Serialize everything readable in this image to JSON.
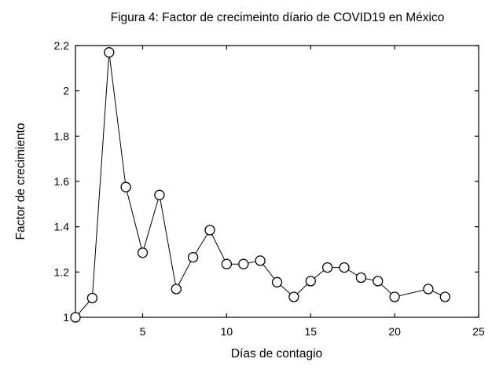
{
  "chart_data": {
    "type": "line",
    "title": "Figura 4: Factor de crecimeinto díario de COVID19 en México",
    "xlabel": "Días de contagio",
    "ylabel": "Factor de crecimiento",
    "x": [
      1,
      2,
      3,
      4,
      5,
      6,
      7,
      8,
      9,
      10,
      11,
      12,
      13,
      14,
      15,
      16,
      17,
      18,
      19,
      20,
      22,
      23
    ],
    "y": [
      1.0,
      1.085,
      2.17,
      1.575,
      1.285,
      1.54,
      1.125,
      1.265,
      1.385,
      1.235,
      1.235,
      1.25,
      1.155,
      1.09,
      1.16,
      1.22,
      1.22,
      1.175,
      1.16,
      1.09,
      1.125,
      1.09
    ],
    "xlim": [
      1,
      25
    ],
    "ylim": [
      1,
      2.2
    ],
    "xticks": [
      5,
      10,
      15,
      20,
      25
    ],
    "yticks": [
      1,
      1.2,
      1.4,
      1.6,
      1.8,
      2,
      2.2
    ],
    "grid": false,
    "legend": null,
    "marker": "open-circle",
    "line_color": "#000000",
    "marker_fill": "#ffffff",
    "axis_color": "#000000",
    "background": "#ffffff"
  }
}
